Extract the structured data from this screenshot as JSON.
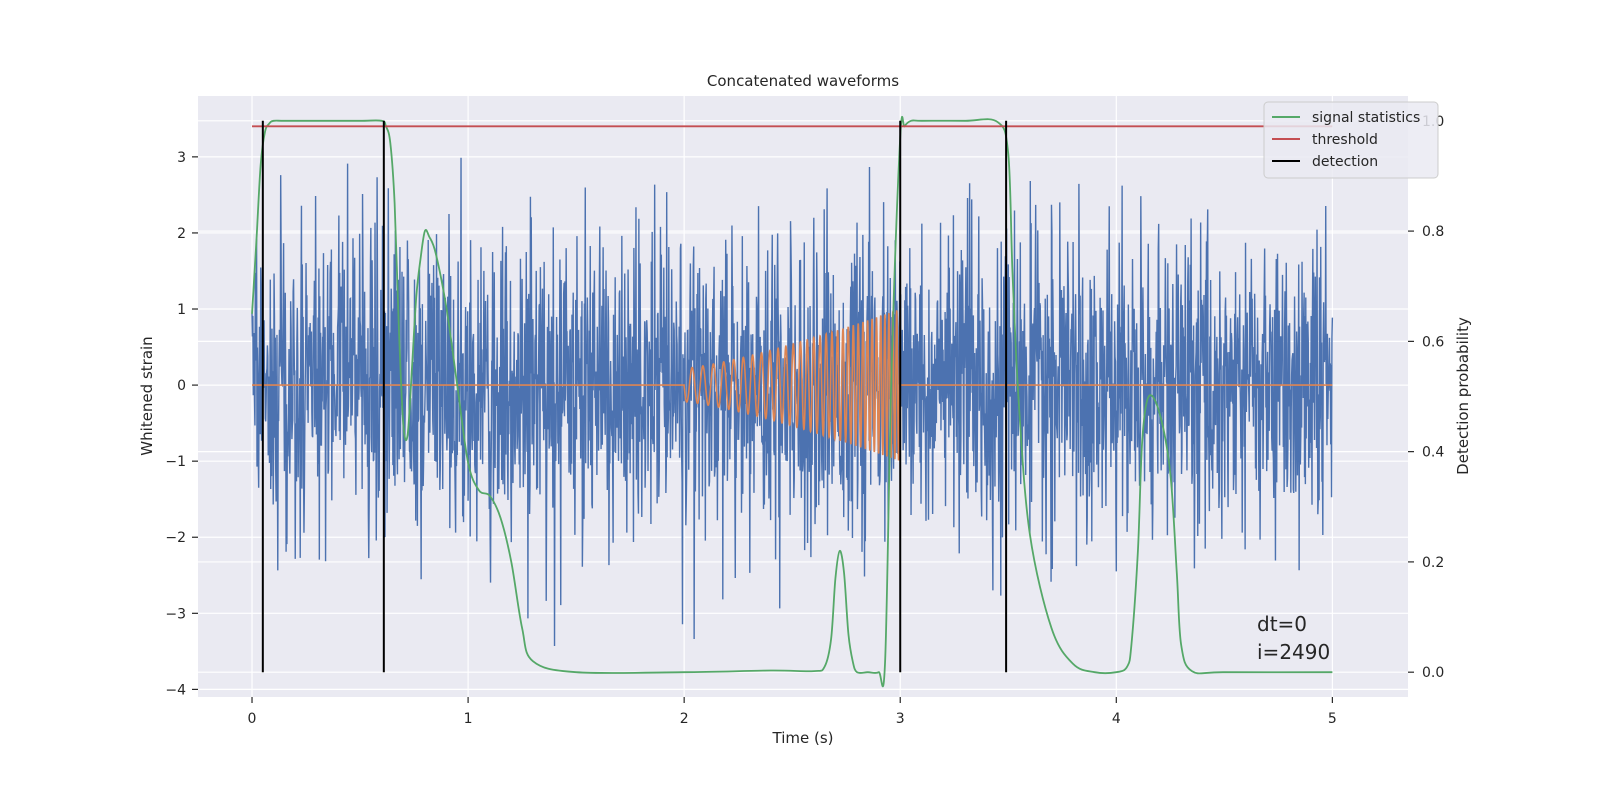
{
  "chart_data": {
    "type": "line",
    "title": "Concatenated waveforms",
    "xlabel": "Time (s)",
    "ylabel": "Whitened strain",
    "y2label": "Detection probability",
    "xlim": [
      -0.25,
      5.35
    ],
    "ylim": [
      -4.1,
      3.8
    ],
    "y2lim": [
      -0.045,
      1.045
    ],
    "x_ticks": [
      0,
      1,
      2,
      3,
      4,
      5
    ],
    "y_ticks": [
      -4,
      -3,
      -2,
      -1,
      0,
      1,
      2,
      3
    ],
    "y2_ticks": [
      "0.0",
      "0.2",
      "0.4",
      "0.6",
      "0.8",
      "1.0"
    ],
    "grid": true,
    "legend_position": "top-right",
    "series": [
      {
        "name": "",
        "axis": "left",
        "kind": "noise",
        "x_range": [
          0,
          5
        ],
        "typical_amplitude": 1.0,
        "min": -3.75,
        "max": 3.4,
        "color": "#4c72b0"
      },
      {
        "name": "",
        "axis": "left",
        "kind": "chirp",
        "x_range": [
          2.0,
          3.0
        ],
        "amplitude_start": 0.22,
        "amplitude_end": 1.0,
        "color": "#dd8452"
      },
      {
        "name": "signal statistics",
        "axis": "right",
        "color": "#55a868",
        "x": [
          0.0,
          0.02,
          0.04,
          0.06,
          0.08,
          0.1,
          0.15,
          0.3,
          0.5,
          0.6,
          0.62,
          0.64,
          0.66,
          0.68,
          0.7,
          0.72,
          0.74,
          0.76,
          0.78,
          0.8,
          0.82,
          0.85,
          0.9,
          0.95,
          1.0,
          1.05,
          1.1,
          1.15,
          1.2,
          1.25,
          1.3,
          1.5,
          2.0,
          2.4,
          2.6,
          2.65,
          2.68,
          2.7,
          2.72,
          2.74,
          2.76,
          2.78,
          2.8,
          2.85,
          2.9,
          2.93,
          2.96,
          3.0,
          3.02,
          3.05,
          3.1,
          3.3,
          3.45,
          3.5,
          3.52,
          3.55,
          3.6,
          3.7,
          3.8,
          3.9,
          4.0,
          4.05,
          4.07,
          4.1,
          4.12,
          4.15,
          4.2,
          4.25,
          4.28,
          4.3,
          4.35,
          4.5,
          5.0
        ],
        "y": [
          0.65,
          0.78,
          0.92,
          0.98,
          0.995,
          1.0,
          1.0,
          1.0,
          1.0,
          1.0,
          0.99,
          0.96,
          0.85,
          0.62,
          0.45,
          0.43,
          0.55,
          0.68,
          0.75,
          0.8,
          0.79,
          0.76,
          0.66,
          0.52,
          0.38,
          0.33,
          0.32,
          0.28,
          0.2,
          0.08,
          0.02,
          0.0,
          0.0,
          0.003,
          0.002,
          0.01,
          0.06,
          0.17,
          0.22,
          0.18,
          0.07,
          0.02,
          0.0,
          0.0,
          0.0,
          0.02,
          0.55,
          0.97,
          0.99,
          1.0,
          1.0,
          1.0,
          0.998,
          0.94,
          0.72,
          0.48,
          0.25,
          0.08,
          0.015,
          0.0,
          0.0,
          0.01,
          0.05,
          0.22,
          0.42,
          0.5,
          0.47,
          0.36,
          0.18,
          0.05,
          0.002,
          0.0,
          0.0
        ]
      },
      {
        "name": "threshold",
        "axis": "right",
        "color": "#c44e52",
        "x": [
          0,
          5
        ],
        "y": [
          0.99,
          0.99
        ]
      },
      {
        "name": "detection",
        "axis": "right",
        "color": "#000000",
        "kind": "vlines",
        "x": [
          0.05,
          0.61,
          3.0,
          3.49
        ],
        "y_range": [
          0.0,
          1.0
        ]
      }
    ],
    "annotations": [
      "dt=0",
      "i=2490"
    ]
  }
}
